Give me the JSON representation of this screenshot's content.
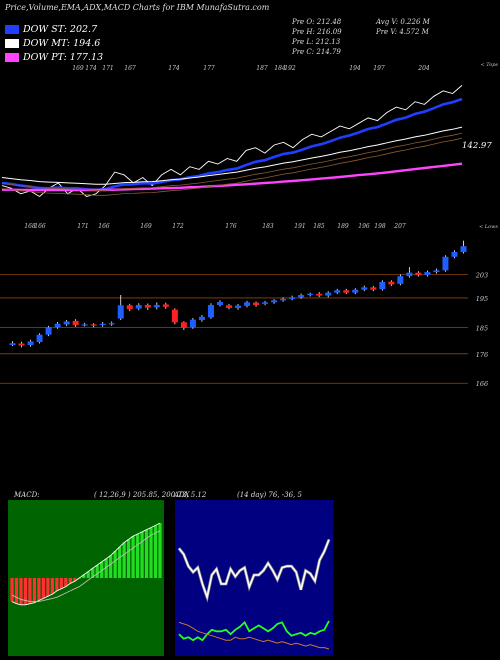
{
  "header": {
    "title": "Price,Volume,EMA,ADX,MACD Charts for IBM MunafaSutra.com",
    "legend": [
      {
        "label": "DOW ST: 202.7",
        "color": "#1f3fff"
      },
      {
        "label": "DOW MT: 194.6",
        "color": "#ffffff"
      },
      {
        "label": "DOW PT: 177.13",
        "color": "#ff44ff"
      }
    ],
    "stats_left": [
      "Pre  O: 212.48",
      "Pre  H: 216.09",
      "Pre  L: 212.13",
      "Pre  C: 214.79"
    ],
    "stats_right": [
      "Avg V: 0.226  M",
      "Pre  V: 4.572  M"
    ]
  },
  "colors": {
    "up": "#1f5fff",
    "down": "#ff2020",
    "ema_short": "#1f3fff",
    "ema_mid": "#ffffff",
    "ema_long": "#ff44ff",
    "grid": "#8b4513",
    "macd_bg": "#006400",
    "adx_bg": "#000080"
  },
  "chart_data": [
    {
      "type": "line",
      "panel": "ema",
      "top_tick_labels": [
        "169",
        "174",
        "171",
        "167",
        "174",
        "177",
        "187",
        "184",
        "192",
        "194",
        "197",
        "204"
      ],
      "bottom_tick_labels": [
        "168",
        "166",
        "171",
        "166",
        "169",
        "172",
        "176",
        "183",
        "191",
        "185",
        "189",
        "196",
        "198",
        "207"
      ],
      "top_right_label": "< Tops",
      "bottom_right_label": "< Lows",
      "price_label": "142.97",
      "series": [
        {
          "name": "price",
          "values": [
            177,
            176,
            174,
            175,
            173,
            176,
            178,
            174,
            176,
            173,
            174,
            177,
            182,
            181,
            178,
            180,
            177,
            181,
            183,
            181,
            184,
            183,
            186,
            185,
            187,
            186,
            190,
            191,
            189,
            192,
            193,
            191,
            194,
            196,
            195,
            197,
            199,
            198,
            200,
            202,
            201,
            204,
            206,
            205,
            208,
            207,
            210,
            212,
            211,
            214
          ]
        },
        {
          "name": "EMA short",
          "values": [
            178,
            177.6,
            177,
            176.6,
            176.1,
            176,
            176.3,
            176,
            176,
            175.6,
            175.4,
            175.7,
            176.7,
            177.4,
            177.5,
            177.9,
            177.8,
            178.3,
            179,
            179.3,
            180.1,
            180.6,
            181.5,
            182,
            182.8,
            183.3,
            184.6,
            185.8,
            186.4,
            187.6,
            188.7,
            189.2,
            190.3,
            191.5,
            192.3,
            193.4,
            194.7,
            195.5,
            196.6,
            197.9,
            198.6,
            199.9,
            201.3,
            202.1,
            203.5,
            204.3,
            205.6,
            207,
            207.8,
            209
          ]
        },
        {
          "name": "EMA mid",
          "values": [
            180,
            179.6,
            179.2,
            178.9,
            178.5,
            178.3,
            178.2,
            178,
            177.9,
            177.7,
            177.5,
            177.5,
            177.8,
            178.1,
            178.2,
            178.4,
            178.5,
            178.8,
            179.2,
            179.4,
            179.8,
            180.2,
            180.7,
            181.1,
            181.6,
            182,
            182.7,
            183.4,
            183.9,
            184.6,
            185.3,
            185.8,
            186.5,
            187.2,
            187.8,
            188.5,
            189.3,
            189.9,
            190.6,
            191.4,
            192,
            192.8,
            193.6,
            194.2,
            195,
            195.6,
            196.4,
            197.2,
            197.8,
            198.6
          ]
        },
        {
          "name": "EMA long",
          "values": [
            175.5,
            175.5,
            175.4,
            175.4,
            175.4,
            175.4,
            175.4,
            175.4,
            175.4,
            175.4,
            175.4,
            175.4,
            175.5,
            175.6,
            175.7,
            175.8,
            175.9,
            176,
            176.1,
            176.2,
            176.4,
            176.5,
            176.7,
            176.9,
            177.1,
            177.3,
            177.5,
            177.7,
            178,
            178.2,
            178.5,
            178.7,
            179,
            179.3,
            179.6,
            179.9,
            180.2,
            180.5,
            180.9,
            181.2,
            181.5,
            181.9,
            182.3,
            182.7,
            183.1,
            183.5,
            183.9,
            184.3,
            184.7,
            185.1
          ]
        }
      ]
    },
    {
      "type": "candlestick",
      "panel": "price",
      "ylabels": [
        "203",
        "195",
        "185",
        "176",
        "166"
      ],
      "yticks": [
        203,
        195,
        185,
        176,
        166
      ],
      "ylim": [
        162,
        213
      ],
      "candles": [
        [
          179,
          179.6,
          180.3,
          178.6
        ],
        [
          179.5,
          178.8,
          180.1,
          178.2
        ],
        [
          179,
          180.2,
          180.8,
          178.4
        ],
        [
          180,
          182.5,
          183,
          179.5
        ],
        [
          182.5,
          185,
          185.5,
          182
        ],
        [
          185,
          186.2,
          186.8,
          184.5
        ],
        [
          186,
          187,
          187.5,
          185.5
        ],
        [
          187.2,
          185.8,
          187.8,
          185.2
        ],
        [
          185.8,
          186,
          186.5,
          185.3
        ],
        [
          186,
          185.7,
          186.4,
          185
        ],
        [
          185.8,
          186.2,
          186.8,
          185.2
        ],
        [
          186,
          186.4,
          187,
          185.5
        ],
        [
          188,
          192.5,
          196,
          187.5
        ],
        [
          192.5,
          191.2,
          193,
          190.5
        ],
        [
          191.4,
          192.6,
          193.2,
          190.8
        ],
        [
          192.6,
          191.7,
          193.1,
          190.9
        ],
        [
          191.8,
          192.6,
          193.5,
          191.1
        ],
        [
          192.8,
          192,
          193.4,
          191.3
        ],
        [
          191,
          186.7,
          191.5,
          186
        ],
        [
          186.7,
          184.8,
          187.1,
          184.1
        ],
        [
          185,
          187.6,
          188.2,
          184.5
        ],
        [
          187.5,
          188.6,
          189.2,
          186.9
        ],
        [
          188.4,
          192.6,
          193.2,
          187.9
        ],
        [
          192.6,
          193.6,
          194.2,
          192.1
        ],
        [
          192.5,
          191.6,
          193,
          191.1
        ],
        [
          191.6,
          192.4,
          192.9,
          191
        ],
        [
          192.3,
          193.5,
          194,
          191.8
        ],
        [
          193.4,
          192.6,
          193.8,
          192
        ],
        [
          193,
          193.5,
          194,
          192.5
        ],
        [
          193.5,
          194.2,
          194.6,
          193
        ],
        [
          194.2,
          194.7,
          195.2,
          193.7
        ],
        [
          194.6,
          195.2,
          195.8,
          194.2
        ],
        [
          195.2,
          196,
          196.5,
          194.7
        ],
        [
          196,
          196.4,
          196.8,
          195.5
        ],
        [
          196.4,
          195.8,
          197,
          195.3
        ],
        [
          195.8,
          196.8,
          197.3,
          195.2
        ],
        [
          196.8,
          197.6,
          198.1,
          196.3
        ],
        [
          197.6,
          196.8,
          198.1,
          196.3
        ],
        [
          196.8,
          197.8,
          198.3,
          196.3
        ],
        [
          197.8,
          198.6,
          199.2,
          197.3
        ],
        [
          198.6,
          197.8,
          199.1,
          197.3
        ],
        [
          198,
          200.4,
          201,
          197.5
        ],
        [
          200.5,
          199.6,
          201,
          199.1
        ],
        [
          199.8,
          202.4,
          203,
          199.3
        ],
        [
          202.4,
          203.6,
          205.5,
          201.9
        ],
        [
          203.6,
          202.8,
          204.1,
          202.3
        ],
        [
          202.8,
          203.8,
          204.3,
          202.3
        ],
        [
          203.8,
          204.4,
          205,
          203.3
        ],
        [
          204.4,
          209,
          209.5,
          203.9
        ],
        [
          209,
          210.6,
          211.2,
          208.5
        ],
        [
          210.6,
          212.6,
          214.5,
          210.1
        ]
      ]
    },
    {
      "type": "line",
      "panel": "macd",
      "title": "MACD:",
      "label": "( 12,26,9 ) 205.85,  200.73,  5.12",
      "ylim": [
        -8,
        8
      ],
      "series": [
        {
          "name": "macd",
          "values": [
            -2.2,
            -2.4,
            -2.5,
            -2.5,
            -2.4,
            -2.3,
            -2.1,
            -1.9,
            -1.7,
            -1.5,
            -1.2,
            -1,
            -0.8,
            -0.5,
            -0.3,
            0,
            0.3,
            0.6,
            0.9,
            1.2,
            1.5,
            1.8,
            2.1,
            2.5,
            2.9,
            3.3,
            3.6,
            3.9,
            4.1,
            4.3,
            4.5,
            4.7,
            4.9,
            5.12
          ]
        },
        {
          "name": "signal",
          "values": [
            -1.6,
            -1.8,
            -2,
            -2.1,
            -2.2,
            -2.2,
            -2.2,
            -2.1,
            -2,
            -1.9,
            -1.8,
            -1.6,
            -1.4,
            -1.2,
            -1,
            -0.8,
            -0.5,
            -0.2,
            0.1,
            0.4,
            0.7,
            1,
            1.3,
            1.6,
            1.9,
            2.2,
            2.5,
            2.8,
            3.1,
            3.4,
            3.7,
            4,
            4.2,
            4.4
          ]
        }
      ]
    },
    {
      "type": "line",
      "panel": "adx",
      "title": "ADX",
      "label": "(14  day) 76,  -36,  5",
      "ylim": [
        0,
        100
      ],
      "series": [
        {
          "name": "adx",
          "values": [
            70,
            66,
            58,
            54,
            57,
            46,
            37,
            52,
            56,
            46,
            46,
            56,
            51,
            55,
            57,
            44,
            52,
            52,
            55,
            60,
            55,
            49,
            57,
            58,
            58,
            54,
            42,
            55,
            53,
            48,
            62,
            68,
            76
          ]
        },
        {
          "name": "+di",
          "values": [
            12,
            9,
            10,
            8,
            10,
            8,
            12,
            15,
            14,
            14,
            15,
            12,
            15,
            17,
            20,
            14,
            16,
            18,
            16,
            14,
            16,
            19,
            20,
            14,
            11,
            12,
            13,
            11,
            13,
            12,
            14,
            15,
            21
          ]
        },
        {
          "name": "-di",
          "values": [
            20,
            19,
            18,
            16,
            14,
            13,
            12,
            11,
            10,
            9,
            8,
            8,
            10,
            9,
            9,
            10,
            9,
            8,
            7,
            8,
            7,
            6,
            7,
            6,
            5,
            6,
            5,
            4,
            5,
            4,
            3,
            3,
            2
          ]
        }
      ]
    }
  ]
}
